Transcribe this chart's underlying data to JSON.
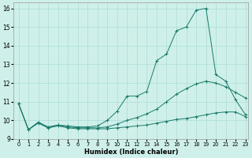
{
  "xlabel": "Humidex (Indice chaleur)",
  "xlim": [
    -0.5,
    23.3
  ],
  "ylim": [
    9.0,
    16.3
  ],
  "yticks": [
    9,
    10,
    11,
    12,
    13,
    14,
    15,
    16
  ],
  "xticks": [
    0,
    1,
    2,
    3,
    4,
    5,
    6,
    7,
    8,
    9,
    10,
    11,
    12,
    13,
    14,
    15,
    16,
    17,
    18,
    19,
    20,
    21,
    22,
    23
  ],
  "background_color": "#cff0ea",
  "grid_color": "#aaddd5",
  "line_color": "#1a7a6a",
  "line_top_x": [
    0,
    1,
    2,
    3,
    4,
    5,
    6,
    7,
    8,
    9,
    10,
    11,
    12,
    13,
    14,
    15,
    16,
    17,
    18,
    19,
    20,
    21,
    22,
    23
  ],
  "line_top_y": [
    10.9,
    9.5,
    9.9,
    9.65,
    9.75,
    9.7,
    9.65,
    9.65,
    9.7,
    10.0,
    10.5,
    11.3,
    11.3,
    11.55,
    13.2,
    13.55,
    14.8,
    15.0,
    15.9,
    16.0,
    12.45,
    12.1,
    11.1,
    10.3
  ],
  "line_mid_x": [
    0,
    1,
    2,
    3,
    4,
    5,
    6,
    7,
    8,
    9,
    10,
    11,
    12,
    13,
    14,
    15,
    16,
    17,
    18,
    19,
    20,
    21,
    22,
    23
  ],
  "line_mid_y": [
    10.9,
    9.5,
    9.9,
    9.6,
    9.75,
    9.65,
    9.6,
    9.6,
    9.6,
    9.65,
    9.8,
    10.0,
    10.15,
    10.35,
    10.6,
    11.0,
    11.4,
    11.7,
    11.95,
    12.1,
    12.0,
    11.8,
    11.5,
    11.2
  ],
  "line_bot_x": [
    0,
    1,
    2,
    3,
    4,
    5,
    6,
    7,
    8,
    9,
    10,
    11,
    12,
    13,
    14,
    15,
    16,
    17,
    18,
    19,
    20,
    21,
    22,
    23
  ],
  "line_bot_y": [
    10.9,
    9.5,
    9.85,
    9.6,
    9.7,
    9.6,
    9.55,
    9.55,
    9.55,
    9.55,
    9.6,
    9.65,
    9.7,
    9.75,
    9.85,
    9.95,
    10.05,
    10.1,
    10.2,
    10.3,
    10.4,
    10.45,
    10.45,
    10.2
  ]
}
